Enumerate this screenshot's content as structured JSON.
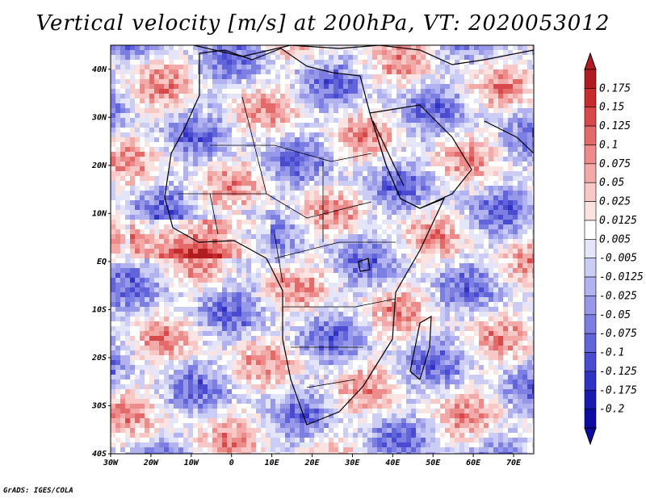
{
  "title": "Vertical velocity [m/s] at 200hPa, VT: 2020053012",
  "footer": "GrADS: IGES/COLA",
  "map": {
    "projection": "latlon",
    "lon_range": [
      -30,
      75
    ],
    "lat_range": [
      -40,
      45
    ],
    "lon_ticks": [
      "30W",
      "20W",
      "10W",
      "0",
      "10E",
      "20E",
      "30E",
      "40E",
      "50E",
      "60E",
      "70E"
    ],
    "lat_ticks": [
      "40N",
      "30N",
      "20N",
      "10N",
      "EQ",
      "10S",
      "20S",
      "30S",
      "40S"
    ],
    "field": "vertical velocity",
    "level": "200hPa",
    "valid_time": "2020053012"
  },
  "colorbar": {
    "labels": [
      "0.175",
      "0.15",
      "0.125",
      "0.1",
      "0.075",
      "0.05",
      "0.025",
      "0.0125",
      "0.005",
      "-0.005",
      "-0.0125",
      "-0.025",
      "-0.05",
      "-0.075",
      "-0.1",
      "-0.125",
      "-0.175",
      "-0.2"
    ],
    "colors": [
      "#b01c20",
      "#c62b2e",
      "#d8494b",
      "#e46a6a",
      "#ec8b8a",
      "#f2aaa8",
      "#f7c8c6",
      "#fbe3e2",
      "#ffffff",
      "#e5e5fa",
      "#cccdf5",
      "#b1b2ef",
      "#9798e8",
      "#7c7ee1",
      "#6264da",
      "#4a4bd1",
      "#3032c4",
      "#1a1ab0",
      "#0c0ca0"
    ]
  }
}
